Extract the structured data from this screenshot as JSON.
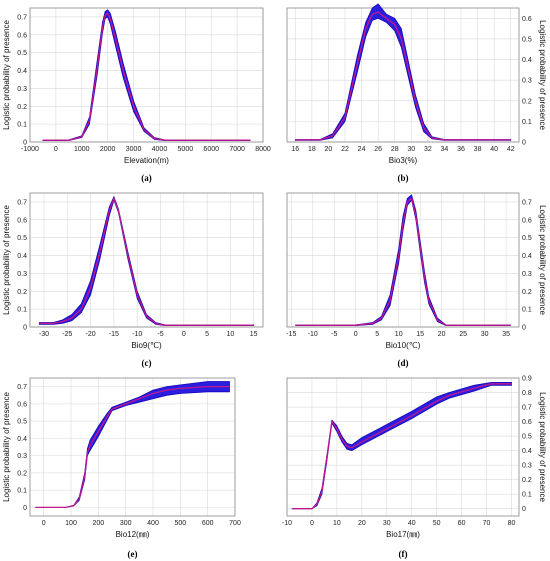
{
  "colors": {
    "band": "#2a1ee0",
    "band_edge": "#1808b8",
    "mean_line": "#c0188c",
    "grid": "#d9d9d9",
    "frame": "#888888"
  },
  "chart_data": [
    {
      "id": "a",
      "type": "line",
      "caption": "(a)",
      "xlabel": "Elevation(m)",
      "ylabel": "Logistic probability of presence",
      "xlim": [
        -1000,
        8000
      ],
      "ylim": [
        0,
        0.75
      ],
      "xticks": [
        -1000,
        0,
        1000,
        2000,
        3000,
        4000,
        5000,
        6000,
        7000,
        8000
      ],
      "yticks": [
        0,
        0.1,
        0.2,
        0.3,
        0.4,
        0.5,
        0.6,
        0.7
      ],
      "yaxis_side": "left",
      "x": [
        -500,
        500,
        1000,
        1300,
        1600,
        1800,
        1900,
        2000,
        2100,
        2300,
        2600,
        3000,
        3400,
        3800,
        4200,
        5000,
        7500
      ],
      "series": [
        {
          "role": "mean",
          "values": [
            0.01,
            0.01,
            0.03,
            0.12,
            0.42,
            0.64,
            0.71,
            0.72,
            0.69,
            0.58,
            0.4,
            0.2,
            0.07,
            0.02,
            0.01,
            0.01,
            0.01
          ]
        },
        {
          "role": "lower",
          "values": [
            0.008,
            0.008,
            0.025,
            0.1,
            0.38,
            0.61,
            0.69,
            0.7,
            0.66,
            0.54,
            0.36,
            0.17,
            0.06,
            0.015,
            0.008,
            0.008,
            0.008
          ]
        },
        {
          "role": "upper",
          "values": [
            0.012,
            0.012,
            0.035,
            0.14,
            0.46,
            0.67,
            0.73,
            0.74,
            0.72,
            0.62,
            0.44,
            0.23,
            0.08,
            0.025,
            0.012,
            0.012,
            0.012
          ]
        }
      ]
    },
    {
      "id": "b",
      "type": "line",
      "caption": "(b)",
      "xlabel": "Bio3(%)",
      "ylabel": "Logistic probability of presence",
      "xlim": [
        15,
        43
      ],
      "ylim": [
        0,
        0.65
      ],
      "xticks": [
        16,
        18,
        20,
        22,
        24,
        26,
        28,
        30,
        32,
        34,
        36,
        38,
        40,
        42
      ],
      "yticks": [
        0,
        0.1,
        0.2,
        0.3,
        0.4,
        0.5,
        0.6
      ],
      "yaxis_side": "right",
      "x": [
        16,
        19,
        20.5,
        22,
        23.5,
        24.5,
        25.3,
        26,
        27,
        28,
        28.8,
        29.5,
        30.5,
        31.5,
        32.5,
        34,
        42
      ],
      "series": [
        {
          "role": "mean",
          "values": [
            0.01,
            0.01,
            0.03,
            0.12,
            0.38,
            0.55,
            0.62,
            0.63,
            0.6,
            0.57,
            0.5,
            0.38,
            0.2,
            0.07,
            0.02,
            0.01,
            0.01
          ]
        },
        {
          "role": "lower",
          "values": [
            0.008,
            0.008,
            0.02,
            0.1,
            0.34,
            0.51,
            0.59,
            0.6,
            0.58,
            0.54,
            0.46,
            0.34,
            0.17,
            0.05,
            0.015,
            0.008,
            0.008
          ]
        },
        {
          "role": "upper",
          "values": [
            0.012,
            0.012,
            0.04,
            0.14,
            0.42,
            0.58,
            0.65,
            0.67,
            0.62,
            0.6,
            0.55,
            0.42,
            0.23,
            0.09,
            0.025,
            0.012,
            0.012
          ]
        }
      ]
    },
    {
      "id": "c",
      "type": "line",
      "caption": "(c)",
      "xlabel": "Bio9(℃)",
      "ylabel": "Logistic probability of presence",
      "xlim": [
        -33,
        17
      ],
      "ylim": [
        0,
        0.75
      ],
      "xticks": [
        -30,
        -25,
        -20,
        -15,
        -10,
        -5,
        0,
        5,
        10,
        15
      ],
      "yticks": [
        0,
        0.1,
        0.2,
        0.3,
        0.4,
        0.5,
        0.6,
        0.7
      ],
      "yaxis_side": "left",
      "x": [
        -31,
        -28,
        -26,
        -24,
        -22,
        -20,
        -18,
        -16,
        -15,
        -14,
        -12,
        -10,
        -8,
        -6,
        -4,
        0,
        15
      ],
      "series": [
        {
          "role": "mean",
          "values": [
            0.02,
            0.02,
            0.03,
            0.05,
            0.1,
            0.22,
            0.42,
            0.65,
            0.72,
            0.65,
            0.4,
            0.18,
            0.06,
            0.02,
            0.01,
            0.01,
            0.01
          ]
        },
        {
          "role": "lower",
          "values": [
            0.015,
            0.015,
            0.02,
            0.035,
            0.08,
            0.18,
            0.38,
            0.62,
            0.71,
            0.64,
            0.38,
            0.16,
            0.05,
            0.015,
            0.008,
            0.008,
            0.008
          ]
        },
        {
          "role": "upper",
          "values": [
            0.025,
            0.025,
            0.04,
            0.07,
            0.13,
            0.26,
            0.46,
            0.67,
            0.73,
            0.66,
            0.42,
            0.2,
            0.07,
            0.025,
            0.012,
            0.012,
            0.012
          ]
        }
      ]
    },
    {
      "id": "d",
      "type": "line",
      "caption": "(d)",
      "xlabel": "Bio10(℃)",
      "ylabel": "Logistic probability of presence",
      "xlim": [
        -16,
        38
      ],
      "ylim": [
        0,
        0.75
      ],
      "xticks": [
        -15,
        -10,
        -5,
        0,
        5,
        10,
        15,
        20,
        25,
        30,
        35
      ],
      "yticks": [
        0,
        0.1,
        0.2,
        0.3,
        0.4,
        0.5,
        0.6,
        0.7
      ],
      "yaxis_side": "right",
      "x": [
        -14,
        0,
        4,
        6,
        8,
        10,
        11,
        12,
        13,
        14,
        15,
        16,
        17,
        19,
        21,
        25,
        36
      ],
      "series": [
        {
          "role": "mean",
          "values": [
            0.01,
            0.01,
            0.02,
            0.05,
            0.15,
            0.4,
            0.58,
            0.7,
            0.72,
            0.62,
            0.45,
            0.28,
            0.15,
            0.04,
            0.01,
            0.01,
            0.01
          ]
        },
        {
          "role": "lower",
          "values": [
            0.008,
            0.008,
            0.015,
            0.04,
            0.12,
            0.36,
            0.54,
            0.68,
            0.71,
            0.6,
            0.42,
            0.25,
            0.13,
            0.03,
            0.008,
            0.008,
            0.008
          ]
        },
        {
          "role": "upper",
          "values": [
            0.012,
            0.012,
            0.025,
            0.06,
            0.18,
            0.44,
            0.62,
            0.72,
            0.74,
            0.65,
            0.48,
            0.31,
            0.17,
            0.05,
            0.012,
            0.012,
            0.012
          ]
        }
      ]
    },
    {
      "id": "e",
      "type": "line",
      "caption": "(e)",
      "xlabel": "Bio12(㎜)",
      "ylabel": "Logistic probability of presence",
      "xlim": [
        -50,
        700
      ],
      "ylim": [
        -0.05,
        0.75
      ],
      "xticks": [
        0,
        100,
        200,
        300,
        400,
        500,
        600,
        700
      ],
      "yticks": [
        0,
        0.1,
        0.2,
        0.3,
        0.4,
        0.5,
        0.6,
        0.7
      ],
      "yaxis_side": "left",
      "x": [
        -30,
        80,
        110,
        130,
        150,
        160,
        170,
        200,
        230,
        250,
        300,
        350,
        400,
        450,
        500,
        600,
        680
      ],
      "series": [
        {
          "role": "mean",
          "values": [
            0,
            0,
            0.01,
            0.05,
            0.18,
            0.32,
            0.36,
            0.44,
            0.52,
            0.57,
            0.6,
            0.63,
            0.66,
            0.68,
            0.69,
            0.7,
            0.7
          ]
        },
        {
          "role": "lower",
          "values": [
            0,
            0,
            0.008,
            0.04,
            0.16,
            0.3,
            0.33,
            0.41,
            0.5,
            0.56,
            0.59,
            0.61,
            0.63,
            0.65,
            0.66,
            0.67,
            0.67
          ]
        },
        {
          "role": "upper",
          "values": [
            0,
            0,
            0.012,
            0.06,
            0.2,
            0.34,
            0.39,
            0.47,
            0.54,
            0.58,
            0.61,
            0.64,
            0.68,
            0.7,
            0.71,
            0.73,
            0.73
          ]
        }
      ]
    },
    {
      "id": "f",
      "type": "line",
      "caption": "(f)",
      "xlabel": "Bio17(㎜)",
      "ylabel": "Logistic probability of presence",
      "xlim": [
        -10,
        83
      ],
      "ylim": [
        -0.05,
        0.9
      ],
      "xticks": [
        -10,
        0,
        10,
        20,
        30,
        40,
        50,
        60,
        70,
        80
      ],
      "yticks": [
        0,
        0.1,
        0.2,
        0.3,
        0.4,
        0.5,
        0.6,
        0.7,
        0.8,
        0.9
      ],
      "yaxis_side": "right",
      "x": [
        -8,
        0,
        2,
        4,
        6,
        8,
        10,
        12,
        14,
        16,
        20,
        30,
        40,
        50,
        55,
        65,
        72,
        80
      ],
      "series": [
        {
          "role": "mean",
          "values": [
            0,
            0,
            0.03,
            0.12,
            0.35,
            0.6,
            0.55,
            0.48,
            0.43,
            0.42,
            0.46,
            0.55,
            0.64,
            0.74,
            0.78,
            0.83,
            0.86,
            0.86
          ]
        },
        {
          "role": "lower",
          "values": [
            0,
            0,
            0.02,
            0.1,
            0.33,
            0.59,
            0.53,
            0.46,
            0.41,
            0.4,
            0.44,
            0.53,
            0.62,
            0.72,
            0.76,
            0.81,
            0.85,
            0.85
          ]
        },
        {
          "role": "upper",
          "values": [
            0,
            0,
            0.04,
            0.14,
            0.37,
            0.61,
            0.57,
            0.5,
            0.45,
            0.44,
            0.49,
            0.58,
            0.67,
            0.77,
            0.8,
            0.85,
            0.87,
            0.87
          ]
        }
      ]
    }
  ]
}
